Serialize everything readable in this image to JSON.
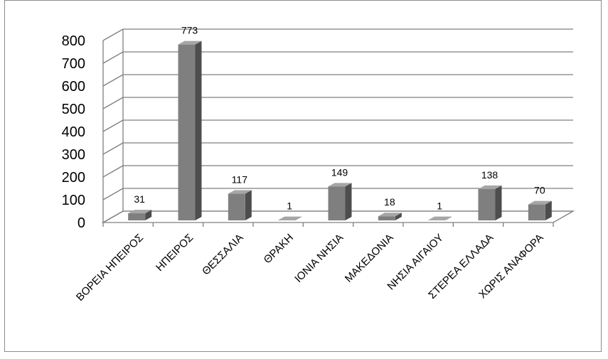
{
  "chart_data": {
    "type": "bar",
    "categories": [
      "ΒΟΡΕΙΑ ΗΠΕΙΡΟΣ",
      "ΗΠΕΙΡΟΣ",
      "ΘΕΣΣΑΛΙΑ",
      "ΘΡΑΚΗ",
      "ΙΟΝΙΑ ΝΗΣΙΑ",
      "ΜΑΚΕΔΟΝΙΑ",
      "ΝΗΣΙΑ ΑΙΓΑΙΟΥ",
      "ΣΤΕΡΕΑ ΕΛΛΑΔΑ",
      "ΧΩΡΙΣ ΑΝΑΦΟΡΑ"
    ],
    "values": [
      31,
      773,
      117,
      1,
      149,
      18,
      1,
      138,
      70
    ],
    "ylim": [
      0,
      800
    ],
    "yticks": [
      "0",
      "100",
      "200",
      "300",
      "400",
      "500",
      "600",
      "700",
      "800"
    ],
    "grid": true,
    "legend": "none",
    "bar_color": "#7f7f7f",
    "title": "",
    "xlabel": "",
    "ylabel": ""
  }
}
